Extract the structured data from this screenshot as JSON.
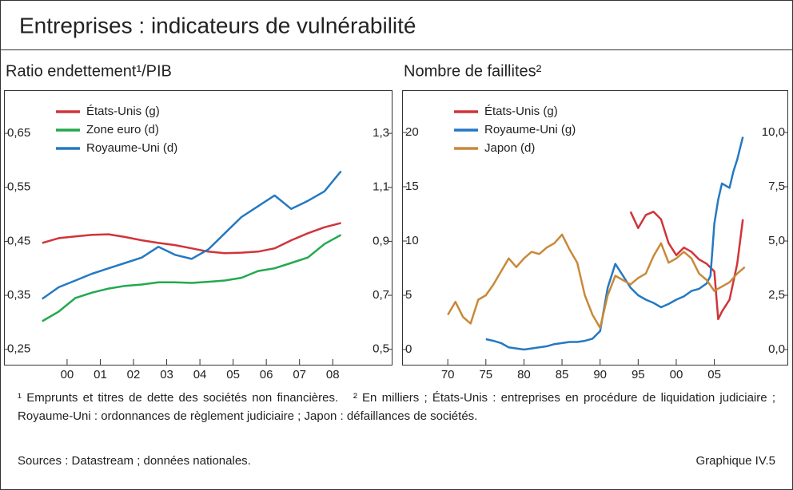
{
  "title": "Entreprises : indicateurs de vulnérabilité",
  "chart_data": [
    {
      "type": "line",
      "title": "Ratio endettement¹/PIB",
      "x": [
        1999.75,
        2000.25,
        2000.75,
        2001.25,
        2001.75,
        2002.25,
        2002.75,
        2003.25,
        2003.75,
        2004.25,
        2004.75,
        2005.25,
        2005.75,
        2006.25,
        2006.75,
        2007.25,
        2007.75,
        2008.25,
        2008.75
      ],
      "xlim": [
        1998.6,
        2010.3
      ],
      "xticks": [
        {
          "value": 2000.5,
          "label": "00"
        },
        {
          "value": 2001.5,
          "label": "01"
        },
        {
          "value": 2002.5,
          "label": "02"
        },
        {
          "value": 2003.5,
          "label": "03"
        },
        {
          "value": 2004.5,
          "label": "04"
        },
        {
          "value": 2005.5,
          "label": "05"
        },
        {
          "value": 2006.5,
          "label": "06"
        },
        {
          "value": 2007.5,
          "label": "07"
        },
        {
          "value": 2008.5,
          "label": "08"
        }
      ],
      "ylim": [
        0.22,
        0.73
      ],
      "yticks": [
        {
          "value": 0.25,
          "label": "0,25"
        },
        {
          "value": 0.35,
          "label": "0,35"
        },
        {
          "value": 0.45,
          "label": "0,45"
        },
        {
          "value": 0.55,
          "label": "0,55"
        },
        {
          "value": 0.65,
          "label": "0,65"
        }
      ],
      "y2lim": [
        0.44,
        1.46
      ],
      "y2ticks": [
        {
          "value": 0.5,
          "label": "0,5"
        },
        {
          "value": 0.7,
          "label": "0,7"
        },
        {
          "value": 0.9,
          "label": "0,9"
        },
        {
          "value": 1.1,
          "label": "1,1"
        },
        {
          "value": 1.3,
          "label": "1,3"
        }
      ],
      "legend": "top-left",
      "series": [
        {
          "name": "États-Unis (g)",
          "color": "#d0343a",
          "values": [
            0.447,
            0.456,
            0.459,
            0.462,
            0.463,
            0.458,
            0.452,
            0.447,
            0.443,
            0.437,
            0.431,
            0.428,
            0.429,
            0.431,
            0.437,
            0.452,
            0.465,
            0.476,
            0.484
          ]
        },
        {
          "name": "Zone euro (d)",
          "color": "#22a94f",
          "axis": "y2",
          "values": [
            0.604,
            0.64,
            0.69,
            0.71,
            0.725,
            0.735,
            0.74,
            0.748,
            0.748,
            0.746,
            0.75,
            0.755,
            0.765,
            0.79,
            0.8,
            0.82,
            0.84,
            0.89,
            0.924
          ]
        },
        {
          "name": "Royaume-Uni (d)",
          "color": "#2479c2",
          "axis": "y2",
          "values": [
            0.687,
            0.73,
            0.755,
            0.78,
            0.8,
            0.82,
            0.84,
            0.88,
            0.85,
            0.835,
            0.87,
            0.93,
            0.99,
            1.03,
            1.07,
            1.02,
            1.05,
            1.085,
            1.16
          ]
        }
      ]
    },
    {
      "type": "line",
      "title": "Nombre de faillites²",
      "xlim": [
        1964,
        2014.7
      ],
      "xticks": [
        {
          "value": 1970,
          "label": "70"
        },
        {
          "value": 1975,
          "label": "75"
        },
        {
          "value": 1980,
          "label": "80"
        },
        {
          "value": 1985,
          "label": "85"
        },
        {
          "value": 1990,
          "label": "90"
        },
        {
          "value": 1995,
          "label": "95"
        },
        {
          "value": 2000,
          "label": "00"
        },
        {
          "value": 2005,
          "label": "05"
        }
      ],
      "ylim": [
        -1.47,
        23.9
      ],
      "yticks": [
        0,
        5,
        10,
        15,
        20
      ],
      "y2lim": [
        -0.735,
        11.95
      ],
      "y2ticks": [
        {
          "value": 0,
          "label": "0,0"
        },
        {
          "value": 2.5,
          "label": "2,5"
        },
        {
          "value": 5,
          "label": "5,0"
        },
        {
          "value": 7.5,
          "label": "7,5"
        },
        {
          "value": 10,
          "label": "10,0"
        }
      ],
      "legend": "top-left",
      "series": [
        {
          "name": "États-Unis (g)",
          "color": "#d0343a",
          "x": [
            1994,
            1995,
            1996,
            1997,
            1998,
            1999,
            2000,
            2001,
            2002,
            2003,
            2004,
            2005,
            2005.5,
            2006,
            2007,
            2008,
            2008.75
          ],
          "values": [
            12.7,
            11.2,
            12.4,
            12.7,
            12.0,
            9.8,
            8.7,
            9.4,
            9.0,
            8.3,
            7.9,
            7.2,
            2.8,
            3.5,
            4.6,
            7.9,
            12.0
          ]
        },
        {
          "name": "Royaume-Uni (g)",
          "color": "#2479c2",
          "x": [
            1975,
            1976,
            1977,
            1978,
            1979,
            1980,
            1981,
            1982,
            1983,
            1984,
            1985,
            1986,
            1987,
            1988,
            1989,
            1990,
            1991,
            1992,
            1993,
            1994,
            1995,
            1996,
            1997,
            1998,
            1999,
            2000,
            2001,
            2002,
            2003,
            2004,
            2004.5,
            2005,
            2005.5,
            2006,
            2007,
            2007.5,
            2008,
            2008.75
          ],
          "values": [
            0.96,
            0.8,
            0.6,
            0.2,
            0.1,
            0.0,
            0.1,
            0.2,
            0.3,
            0.5,
            0.6,
            0.7,
            0.7,
            0.8,
            1.0,
            1.7,
            5.7,
            7.9,
            6.8,
            5.7,
            5.0,
            4.6,
            4.3,
            3.9,
            4.2,
            4.6,
            4.9,
            5.4,
            5.6,
            6.1,
            6.8,
            11.6,
            13.8,
            15.3,
            14.9,
            16.4,
            17.5,
            19.6
          ]
        },
        {
          "name": "Japon (d)",
          "color": "#c8893a",
          "axis": "y2",
          "x": [
            1970,
            1971,
            1972,
            1973,
            1974,
            1975,
            1976,
            1977,
            1978,
            1979,
            1980,
            1981,
            1982,
            1983,
            1984,
            1985,
            1986,
            1987,
            1988,
            1989,
            1990,
            1991,
            1992,
            1993,
            1994,
            1995,
            1996,
            1997,
            1998,
            1999,
            2000,
            2001,
            2002,
            2003,
            2004,
            2005,
            2006,
            2007,
            2008,
            2009
          ],
          "values": [
            1.6,
            2.2,
            1.5,
            1.2,
            2.3,
            2.5,
            3.0,
            3.6,
            4.2,
            3.8,
            4.2,
            4.5,
            4.4,
            4.7,
            4.9,
            5.3,
            4.6,
            4.0,
            2.5,
            1.6,
            1.0,
            2.5,
            3.4,
            3.2,
            3.0,
            3.3,
            3.5,
            4.3,
            4.9,
            4.0,
            4.2,
            4.5,
            4.2,
            3.5,
            3.2,
            2.7,
            2.9,
            3.1,
            3.5,
            3.8
          ]
        }
      ]
    }
  ],
  "footnotes": [
    "¹ Emprunts et titres de dette des sociétés non financières.",
    "² En milliers ; États-Unis : entreprises en procédure de liquidation judiciaire ; Royaume-Uni : ordonnances de règlement judiciaire ; Japon : défaillances de sociétés."
  ],
  "sources": "Sources : Datastream ; données nationales.",
  "figure_id": "Graphique IV.5"
}
